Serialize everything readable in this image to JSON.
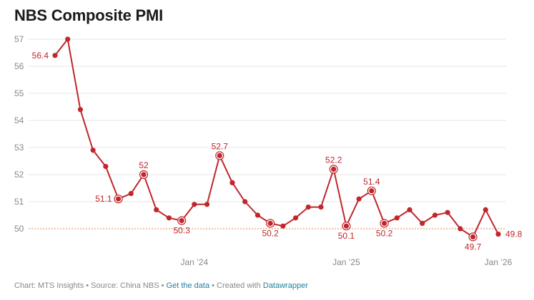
{
  "title": "NBS Composite PMI",
  "footer": {
    "chart_credit": "Chart: MTS Insights",
    "source": "Source: China NBS",
    "get_data": "Get the data",
    "created_with": "Created with",
    "tool": "Datawrapper",
    "separator": " • "
  },
  "colors": {
    "line": "#c0262b",
    "reference_line": "#d98b5f",
    "grid": "#e6e6e6",
    "axis_text": "#888888",
    "title": "#1a1a1a",
    "link": "#1d81a2"
  },
  "chart_data": {
    "type": "line",
    "title": "NBS Composite PMI",
    "xlabel": "",
    "ylabel": "",
    "ylim": [
      49.5,
      57
    ],
    "yticks": [
      50,
      51,
      52,
      53,
      54,
      55,
      56,
      57
    ],
    "x_tick_labels": [
      {
        "index": 11,
        "label": "Jan ’24"
      },
      {
        "index": 23,
        "label": "Jan ’25"
      },
      {
        "index": 35,
        "label": "Jan ’26"
      }
    ],
    "reference_line": 50,
    "grid": true,
    "series": [
      {
        "values": [
          56.4,
          57.0,
          54.4,
          52.9,
          52.3,
          51.1,
          51.3,
          52.0,
          50.7,
          50.4,
          50.3,
          50.9,
          50.9,
          52.7,
          51.7,
          51.0,
          50.5,
          50.2,
          50.1,
          50.4,
          50.8,
          50.8,
          52.2,
          50.1,
          51.1,
          51.4,
          50.2,
          50.4,
          50.7,
          50.2,
          50.5,
          50.6,
          50.0,
          49.7,
          50.7,
          49.8
        ]
      }
    ],
    "annotations": [
      {
        "index": 0,
        "label": "56.4",
        "position": "left"
      },
      {
        "index": 5,
        "label": "51.1",
        "position": "left"
      },
      {
        "index": 7,
        "label": "52",
        "position": "above"
      },
      {
        "index": 10,
        "label": "50.3",
        "position": "below"
      },
      {
        "index": 13,
        "label": "52.7",
        "position": "above"
      },
      {
        "index": 17,
        "label": "50.2",
        "position": "below"
      },
      {
        "index": 22,
        "label": "52.2",
        "position": "above"
      },
      {
        "index": 23,
        "label": "50.1",
        "position": "below"
      },
      {
        "index": 25,
        "label": "51.4",
        "position": "above"
      },
      {
        "index": 26,
        "label": "50.2",
        "position": "below"
      },
      {
        "index": 33,
        "label": "49.7",
        "position": "below"
      },
      {
        "index": 35,
        "label": "49.8",
        "position": "right"
      }
    ]
  }
}
